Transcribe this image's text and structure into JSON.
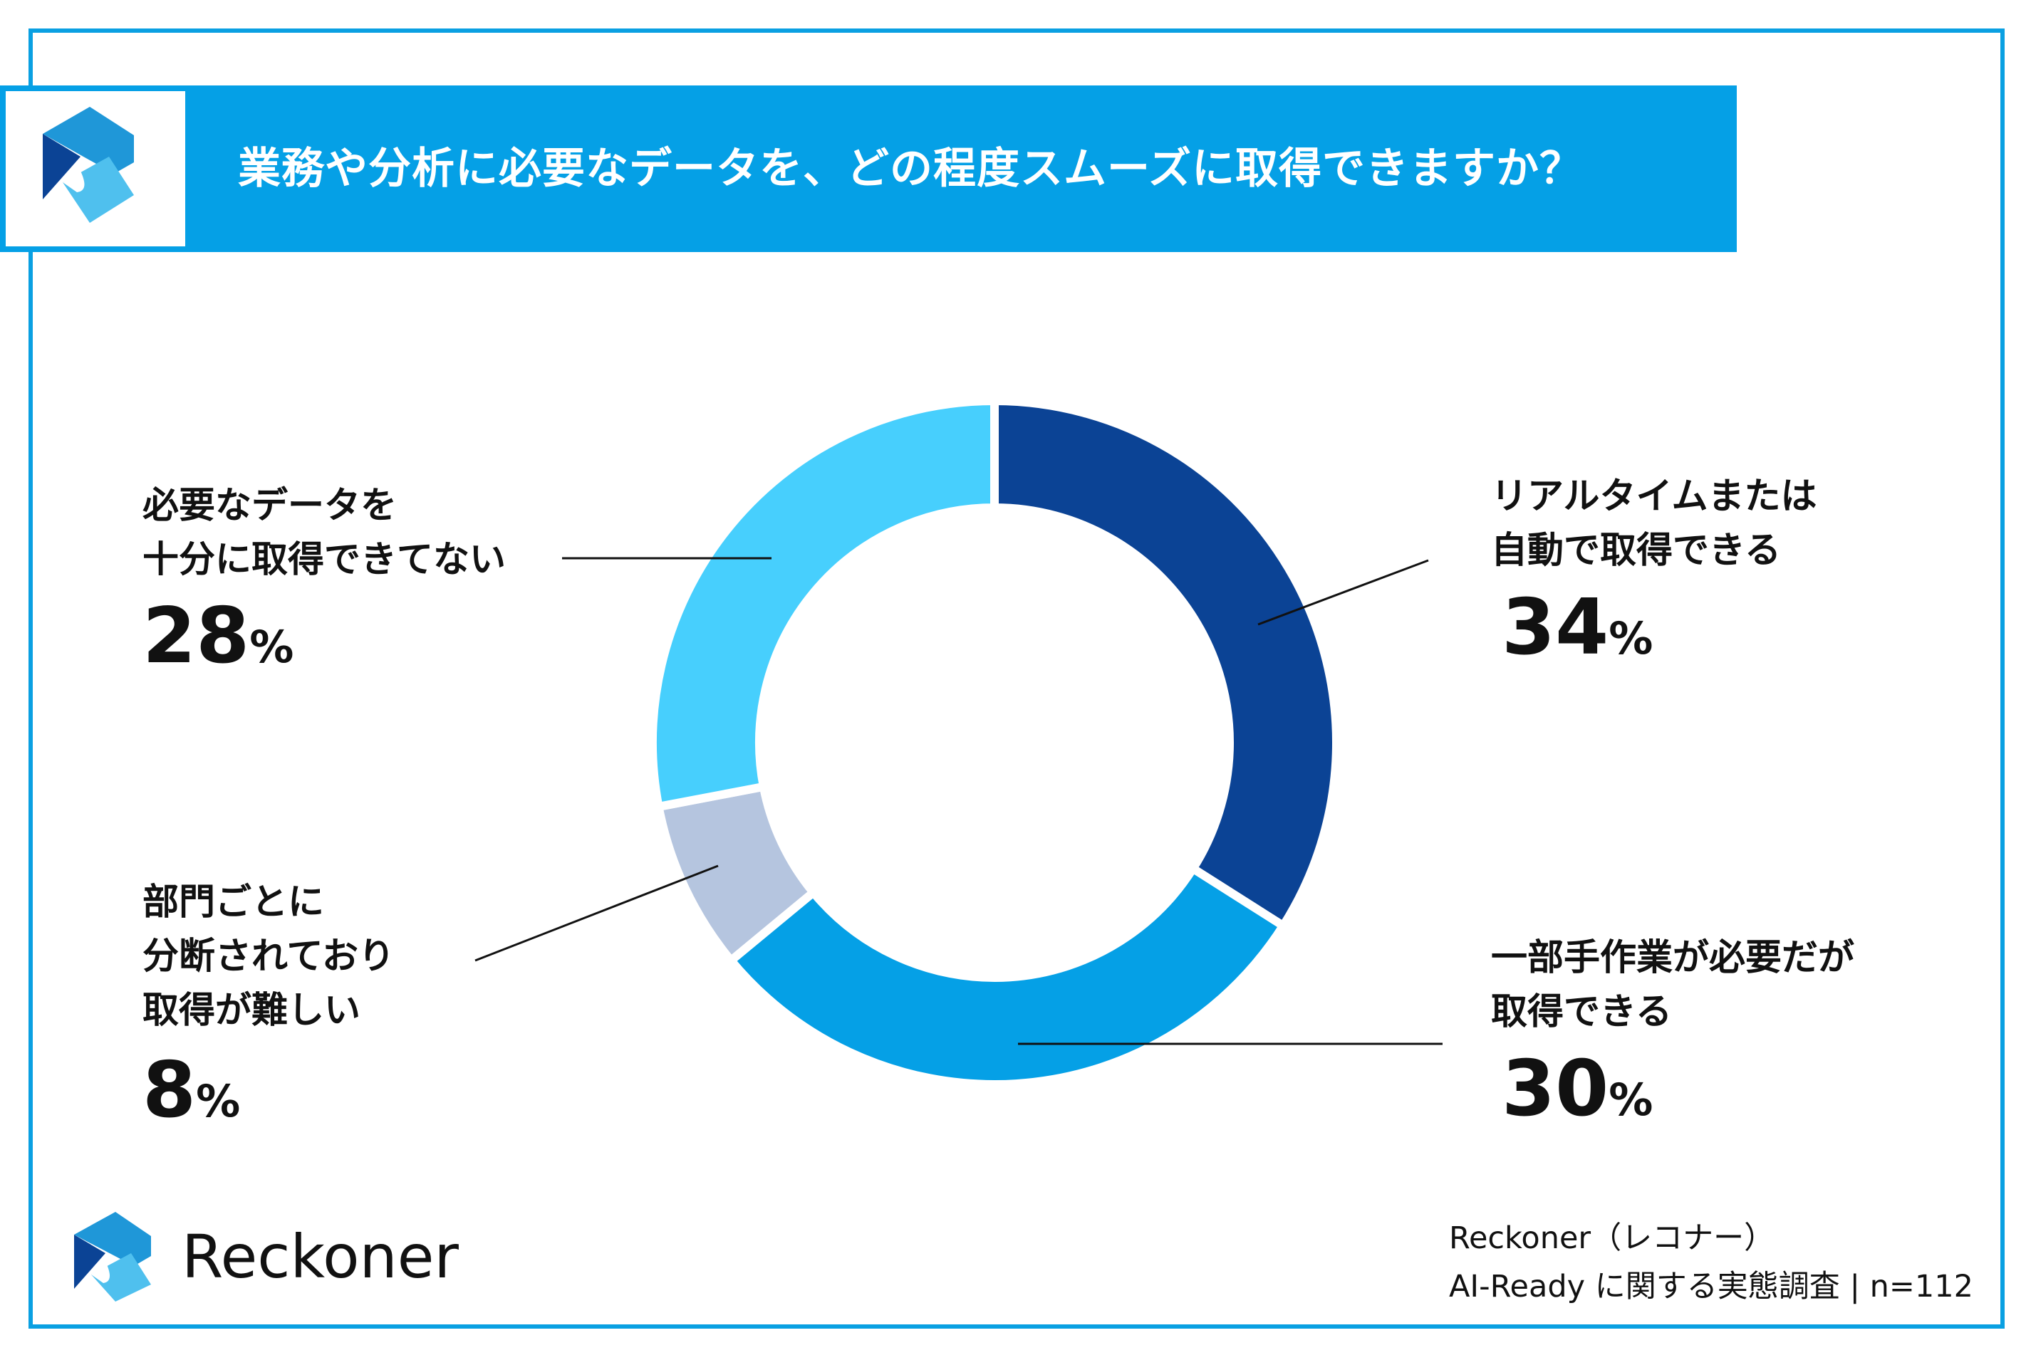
{
  "header": {
    "title": "業務や分析に必要なデータを、どの程度スムーズに取得できますか？"
  },
  "brand": {
    "name": "Reckoner",
    "logo_icon": "reckoner-logo-icon"
  },
  "footer": {
    "line1": "Reckoner（レコナー）",
    "line2": "AI-Ready に関する実態調査 | n=112"
  },
  "colors": {
    "accent": "#05a0e6",
    "border": "#0aa0e2"
  },
  "chart_data": {
    "type": "pie",
    "subtype": "donut",
    "title": "業務や分析に必要なデータを、どの程度スムーズに取得できますか？",
    "start": "top, clockwise",
    "slices": [
      {
        "label_lines": [
          "リアルタイムまたは",
          "自動で取得できる"
        ],
        "value": 34,
        "display": "34",
        "unit": "%",
        "color": "#0b4395"
      },
      {
        "label_lines": [
          "一部手作業が必要だが",
          "取得できる"
        ],
        "value": 30,
        "display": "30",
        "unit": "%",
        "color": "#05a0e6"
      },
      {
        "label_lines": [
          "部門ごとに",
          "分断されており",
          "取得が難しい"
        ],
        "value": 8,
        "display": "8",
        "unit": "%",
        "color": "#b5c5df"
      },
      {
        "label_lines": [
          "必要なデータを",
          "十分に取得できてない"
        ],
        "value": 28,
        "display": "28",
        "unit": "%",
        "color": "#47cffd"
      }
    ]
  }
}
